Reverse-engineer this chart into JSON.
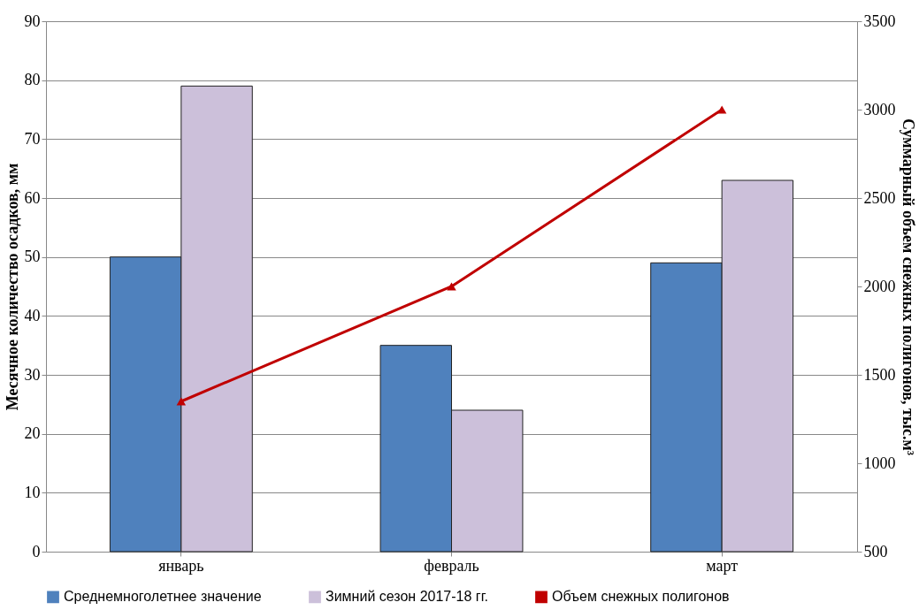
{
  "chart_data": {
    "type": "bar",
    "categories": [
      "январь",
      "февраль",
      "март"
    ],
    "series": [
      {
        "name": "Среднемноголетнее значение",
        "color": "#4f81bd",
        "values": [
          50,
          35,
          49
        ]
      },
      {
        "name": "Зимний сезон 2017-18 гг.",
        "color": "#ccc0da",
        "values": [
          79,
          24,
          63
        ]
      },
      {
        "name": "Объем снежных полигонов",
        "color": "#c00000",
        "values": [
          1350,
          2000,
          3000
        ],
        "type": "line",
        "axis": "y2",
        "marker": "triangle"
      }
    ],
    "ylabel": "Месячное количество осадков, мм",
    "y2label": "Суммарный объем снежных полигонов, тыс.м³",
    "ylim": [
      0,
      90
    ],
    "yticks": [
      0,
      10,
      20,
      30,
      40,
      50,
      60,
      70,
      80,
      90
    ],
    "y2lim": [
      500,
      3500
    ],
    "y2ticks": [
      500,
      1000,
      1500,
      2000,
      2500,
      3000,
      3500
    ],
    "grid": "y",
    "legend": "bottom"
  }
}
